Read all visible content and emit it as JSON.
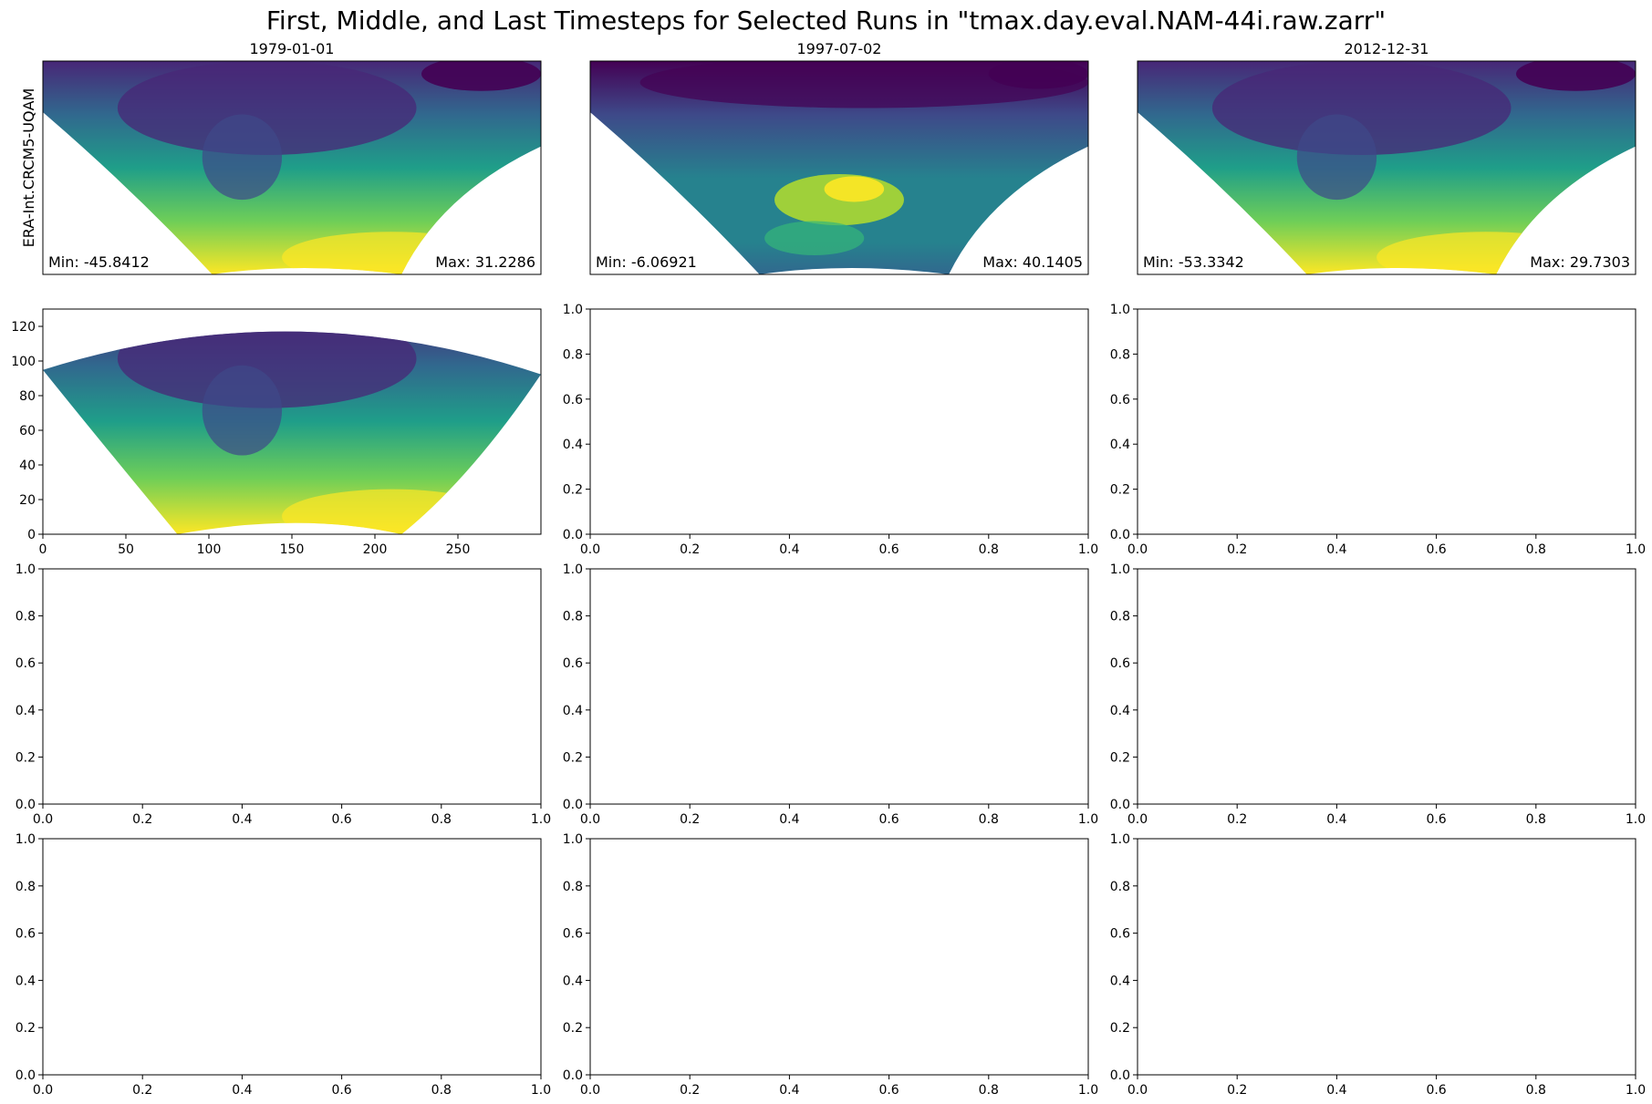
{
  "title": "First, Middle, and Last Timesteps for Selected Runs in \"tmax.day.eval.NAM-44i.raw.zarr\"",
  "colors": {
    "colormap": "viridis",
    "viridis_stops": [
      "#440154",
      "#482777",
      "#3e4989",
      "#31688e",
      "#26828e",
      "#1f9e89",
      "#35b779",
      "#6ece58",
      "#b5de2b",
      "#fde725"
    ]
  },
  "chart_data": [
    {
      "type": "heatmap",
      "name": "map-row0-col0",
      "title": "1979-01-01",
      "ylabel": "ERA-Int.CRCM5-UQAM",
      "xlabel": "",
      "colormap": "viridis",
      "show_ticks": false,
      "min_label": "Min: -45.8412",
      "max_label": "Max: 31.2286",
      "value_range": [
        -45.8412,
        31.2286
      ]
    },
    {
      "type": "heatmap",
      "name": "map-row0-col1",
      "title": "1997-07-02",
      "ylabel": "",
      "xlabel": "",
      "colormap": "viridis",
      "show_ticks": false,
      "min_label": "Min: -6.06921",
      "max_label": "Max: 40.1405",
      "value_range": [
        -6.06921,
        40.1405
      ]
    },
    {
      "type": "heatmap",
      "name": "map-row0-col2",
      "title": "2012-12-31",
      "ylabel": "",
      "xlabel": "",
      "colormap": "viridis",
      "show_ticks": false,
      "min_label": "Min: -53.3342",
      "max_label": "Max: 29.7303",
      "value_range": [
        -53.3342,
        29.7303
      ]
    },
    {
      "type": "heatmap",
      "name": "map-row1-col0",
      "title": "",
      "colormap": "viridis",
      "show_ticks": true,
      "xlim": [
        0,
        300
      ],
      "ylim": [
        0,
        130
      ],
      "xticks": [
        0,
        50,
        100,
        150,
        200,
        250
      ],
      "yticks": [
        0,
        20,
        40,
        60,
        80,
        100,
        120
      ]
    },
    {
      "type": "empty",
      "name": "empty-row1-col1",
      "xlim": [
        0,
        1
      ],
      "ylim": [
        0,
        1
      ],
      "ticks": [
        0.0,
        0.2,
        0.4,
        0.6,
        0.8,
        1.0
      ]
    },
    {
      "type": "empty",
      "name": "empty-row1-col2",
      "xlim": [
        0,
        1
      ],
      "ylim": [
        0,
        1
      ],
      "ticks": [
        0.0,
        0.2,
        0.4,
        0.6,
        0.8,
        1.0
      ]
    },
    {
      "type": "empty",
      "name": "empty-row2-col0",
      "xlim": [
        0,
        1
      ],
      "ylim": [
        0,
        1
      ],
      "ticks": [
        0.0,
        0.2,
        0.4,
        0.6,
        0.8,
        1.0
      ]
    },
    {
      "type": "empty",
      "name": "empty-row2-col1",
      "xlim": [
        0,
        1
      ],
      "ylim": [
        0,
        1
      ],
      "ticks": [
        0.0,
        0.2,
        0.4,
        0.6,
        0.8,
        1.0
      ]
    },
    {
      "type": "empty",
      "name": "empty-row2-col2",
      "xlim": [
        0,
        1
      ],
      "ylim": [
        0,
        1
      ],
      "ticks": [
        0.0,
        0.2,
        0.4,
        0.6,
        0.8,
        1.0
      ]
    },
    {
      "type": "empty",
      "name": "empty-row3-col0",
      "xlim": [
        0,
        1
      ],
      "ylim": [
        0,
        1
      ],
      "ticks": [
        0.0,
        0.2,
        0.4,
        0.6,
        0.8,
        1.0
      ]
    },
    {
      "type": "empty",
      "name": "empty-row3-col1",
      "xlim": [
        0,
        1
      ],
      "ylim": [
        0,
        1
      ],
      "ticks": [
        0.0,
        0.2,
        0.4,
        0.6,
        0.8,
        1.0
      ]
    },
    {
      "type": "empty",
      "name": "empty-row3-col2",
      "xlim": [
        0,
        1
      ],
      "ylim": [
        0,
        1
      ],
      "ticks": [
        0.0,
        0.2,
        0.4,
        0.6,
        0.8,
        1.0
      ]
    }
  ]
}
